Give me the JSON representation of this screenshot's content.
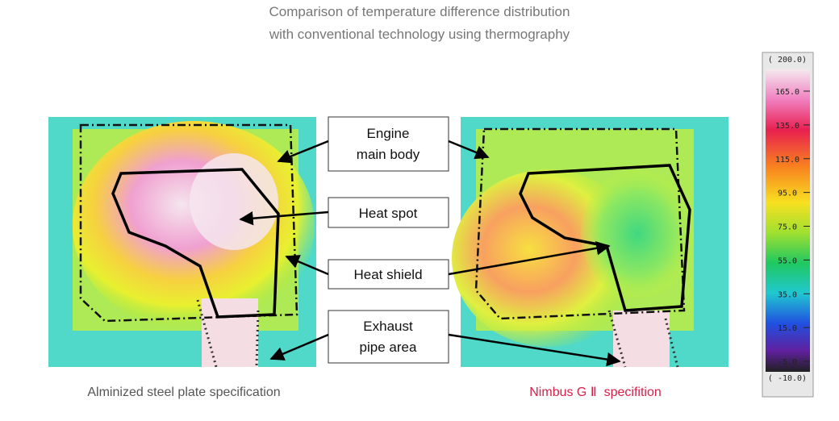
{
  "title": {
    "line1": "Comparison of temperature difference distribution",
    "line2": "with conventional technology using thermography"
  },
  "labels": {
    "engine": {
      "line1": "Engine",
      "line2": "main body"
    },
    "heat_spot": "Heat spot",
    "heat_shield": "Heat shield",
    "exhaust": {
      "line1": "Exhaust",
      "line2": "pipe area"
    }
  },
  "captions": {
    "left": "Alminized steel plate specification",
    "right": "Nimbus G Ⅱ  specifition"
  },
  "scale": {
    "top": "( 200.0)",
    "ticks": [
      "165.0",
      "135.0",
      "115.0",
      "95.0",
      "75.0",
      "55.0",
      "35.0",
      "15.0",
      "-5.0"
    ],
    "bottom": "( -10.0)"
  }
}
